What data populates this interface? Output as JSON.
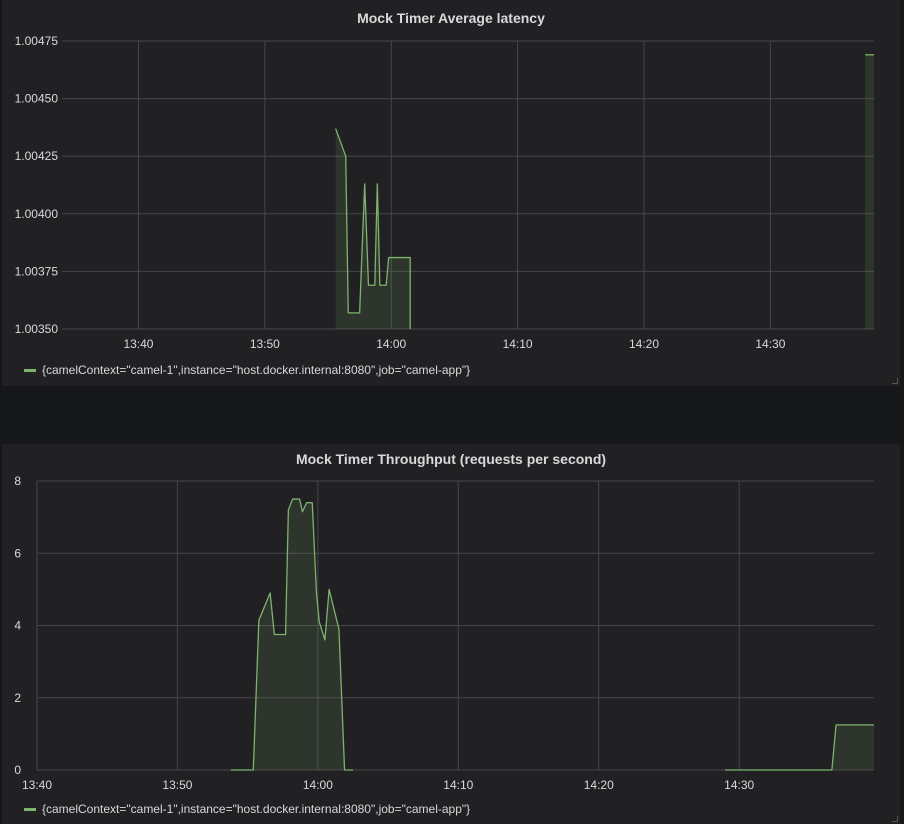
{
  "panels": [
    {
      "title": "Mock Timer Average latency",
      "legend": "{camelContext=\"camel-1\",instance=\"host.docker.internal:8080\",job=\"camel-app\"}"
    },
    {
      "title": "Mock Timer Throughput (requests per second)",
      "legend": "{camelContext=\"camel-1\",instance=\"host.docker.internal:8080\",job=\"camel-app\"}"
    }
  ],
  "colors": {
    "series": "#7eb26d",
    "grid": "#464649",
    "background": "#161719",
    "panel": "#212124"
  },
  "chart_data": [
    {
      "type": "area",
      "title": "Mock Timer Average latency",
      "x_axis": {
        "min": 33.95,
        "max": 98.2,
        "ticks": [
          {
            "v": 40,
            "label": "13:40"
          },
          {
            "v": 50,
            "label": "13:50"
          },
          {
            "v": 60,
            "label": "14:00"
          },
          {
            "v": 70,
            "label": "14:10"
          },
          {
            "v": 80,
            "label": "14:20"
          },
          {
            "v": 90,
            "label": "14:30"
          }
        ]
      },
      "y_axis": {
        "min": 1.0035,
        "max": 1.00475,
        "ticks": [
          {
            "v": 1.0035,
            "label": "1.00350"
          },
          {
            "v": 1.00375,
            "label": "1.00375"
          },
          {
            "v": 1.004,
            "label": "1.00400"
          },
          {
            "v": 1.00425,
            "label": "1.00425"
          },
          {
            "v": 1.0045,
            "label": "1.00450"
          },
          {
            "v": 1.00475,
            "label": "1.00475"
          }
        ]
      },
      "grid": true,
      "legend_position": "bottom",
      "series": [
        {
          "segments": [
            [
              [
                55.6,
                1.00437
              ],
              [
                56.4,
                1.00425
              ],
              [
                56.6,
                1.00357
              ],
              [
                57.5,
                1.00357
              ],
              [
                57.9,
                1.00413
              ],
              [
                58.2,
                1.00369
              ],
              [
                58.7,
                1.00369
              ],
              [
                58.9,
                1.00413
              ],
              [
                59.1,
                1.00369
              ],
              [
                59.6,
                1.00369
              ],
              [
                59.8,
                1.00381
              ],
              [
                61.5,
                1.00381
              ],
              [
                61.5,
                1.0035
              ]
            ],
            [
              [
                97.5,
                1.00469
              ],
              [
                98.2,
                1.00469
              ]
            ]
          ]
        }
      ]
    },
    {
      "type": "area",
      "title": "Mock Timer Throughput (requests per second)",
      "x_axis": {
        "min": 40.0,
        "max": 99.6,
        "ticks": [
          {
            "v": 40,
            "label": "13:40"
          },
          {
            "v": 50,
            "label": "13:50"
          },
          {
            "v": 60,
            "label": "14:00"
          },
          {
            "v": 70,
            "label": "14:10"
          },
          {
            "v": 80,
            "label": "14:20"
          },
          {
            "v": 90,
            "label": "14:30"
          }
        ]
      },
      "y_axis": {
        "min": 0,
        "max": 8,
        "ticks": [
          {
            "v": 0,
            "label": "0"
          },
          {
            "v": 2,
            "label": "2"
          },
          {
            "v": 4,
            "label": "4"
          },
          {
            "v": 6,
            "label": "6"
          },
          {
            "v": 8,
            "label": "8"
          }
        ]
      },
      "grid": true,
      "legend_position": "bottom",
      "series": [
        {
          "segments": [
            [
              [
                53.8,
                0
              ],
              [
                55.4,
                0
              ],
              [
                55.8,
                4.15
              ],
              [
                56.6,
                4.9
              ],
              [
                56.9,
                3.75
              ],
              [
                57.7,
                3.75
              ],
              [
                57.9,
                7.2
              ],
              [
                58.2,
                7.5
              ],
              [
                58.7,
                7.5
              ],
              [
                58.9,
                7.15
              ],
              [
                59.2,
                7.4
              ],
              [
                59.6,
                7.4
              ],
              [
                59.9,
                4.9
              ],
              [
                60.1,
                4.1
              ],
              [
                60.5,
                3.6
              ],
              [
                60.8,
                5.0
              ],
              [
                61.5,
                3.9
              ],
              [
                61.9,
                0
              ],
              [
                62.5,
                0
              ]
            ],
            [
              [
                89.0,
                0
              ],
              [
                96.6,
                0
              ],
              [
                96.9,
                1.25
              ],
              [
                99.6,
                1.25
              ]
            ]
          ]
        }
      ]
    }
  ]
}
